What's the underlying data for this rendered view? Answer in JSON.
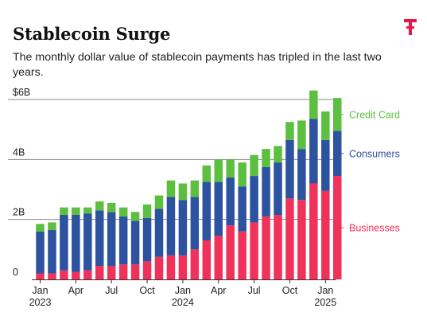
{
  "title": "Stablecoin Surge",
  "subtitle": "The monthly dollar value of stablecoin payments has tripled in the last two years.",
  "brand_color": "#e8174b",
  "chart_data": {
    "type": "bar",
    "stacked": true,
    "categories": [
      "Jan 2023",
      "Feb 2023",
      "Mar 2023",
      "Apr 2023",
      "May 2023",
      "Jun 2023",
      "Jul 2023",
      "Aug 2023",
      "Sep 2023",
      "Oct 2023",
      "Nov 2023",
      "Dec 2023",
      "Jan 2024",
      "Feb 2024",
      "Mar 2024",
      "Apr 2024",
      "May 2024",
      "Jun 2024",
      "Jul 2024",
      "Aug 2024",
      "Sep 2024",
      "Oct 2024",
      "Nov 2024",
      "Dec 2024",
      "Jan 2025",
      "Feb 2025"
    ],
    "series": [
      {
        "name": "Businesses",
        "color": "#f0325a",
        "values": [
          0.2,
          0.2,
          0.3,
          0.25,
          0.3,
          0.45,
          0.45,
          0.5,
          0.5,
          0.6,
          0.75,
          0.8,
          0.8,
          1.0,
          1.3,
          1.45,
          1.8,
          1.6,
          1.9,
          2.1,
          2.15,
          2.7,
          2.65,
          3.2,
          2.95,
          3.45
        ]
      },
      {
        "name": "Consumers",
        "color": "#2c52a0",
        "values": [
          1.4,
          1.45,
          1.85,
          1.9,
          1.9,
          1.85,
          1.8,
          1.6,
          1.45,
          1.45,
          1.6,
          1.95,
          1.85,
          1.75,
          1.95,
          1.8,
          1.6,
          1.5,
          1.55,
          1.65,
          1.75,
          1.95,
          1.7,
          2.15,
          1.7,
          1.5
        ]
      },
      {
        "name": "Credit Card",
        "color": "#5cbf3f",
        "values": [
          0.25,
          0.25,
          0.25,
          0.25,
          0.2,
          0.3,
          0.3,
          0.3,
          0.3,
          0.45,
          0.45,
          0.55,
          0.55,
          0.55,
          0.55,
          0.75,
          0.6,
          0.8,
          0.7,
          0.6,
          0.55,
          0.6,
          0.95,
          0.95,
          0.95,
          1.1
        ]
      }
    ],
    "y_tick_labels": [
      "0",
      "2B",
      "4B",
      "$6B"
    ],
    "y_ticks": [
      0,
      2,
      4,
      6
    ],
    "ylim": [
      0,
      6.3
    ],
    "x_tick_labels": [
      {
        "index": 0,
        "line1": "Jan",
        "line2": "2023"
      },
      {
        "index": 3,
        "line1": "Apr",
        "line2": ""
      },
      {
        "index": 6,
        "line1": "Jul",
        "line2": ""
      },
      {
        "index": 9,
        "line1": "Oct",
        "line2": ""
      },
      {
        "index": 12,
        "line1": "Jan",
        "line2": "2024"
      },
      {
        "index": 15,
        "line1": "Apr",
        "line2": ""
      },
      {
        "index": 18,
        "line1": "Jul",
        "line2": ""
      },
      {
        "index": 21,
        "line1": "Oct",
        "line2": ""
      },
      {
        "index": 24,
        "line1": "Jan",
        "line2": "2025"
      }
    ],
    "grid": true,
    "legend": "right, labels beside last bar"
  }
}
